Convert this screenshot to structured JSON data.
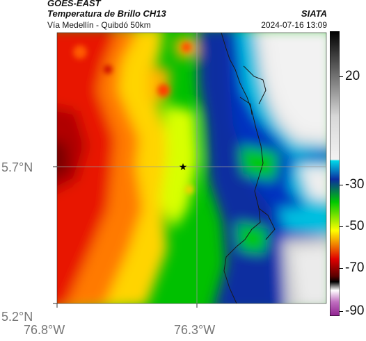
{
  "header": {
    "satellite": "GOES-EAST",
    "product": "Temperatura de Brillo CH13",
    "area": "Vía Medellín - Quibdó 50km",
    "organization": "SIATA",
    "datetime": "2024-07-16 13:09"
  },
  "map": {
    "x_ticks": [
      "76.8°W",
      "76.3°W"
    ],
    "y_ticks": [
      "5.7°N",
      "5.2°N"
    ],
    "marker_icon": "star-icon",
    "background_color": "#ffffff",
    "grid_color": "#999999",
    "boundary_color": "#1a1a1a"
  },
  "colorbar": {
    "tick_labels": [
      "20",
      "-30",
      "-50",
      "-70",
      "-90"
    ],
    "colors": {
      "top": "#000000",
      "mid_gray": "#bdbdbd",
      "cyan": "#00d8e8",
      "blue": "#0a2ea0",
      "green": "#00c800",
      "yellow": "#ffff00",
      "red": "#e00000",
      "dark_red": "#5a0000",
      "magenta": "#a020a0"
    }
  }
}
